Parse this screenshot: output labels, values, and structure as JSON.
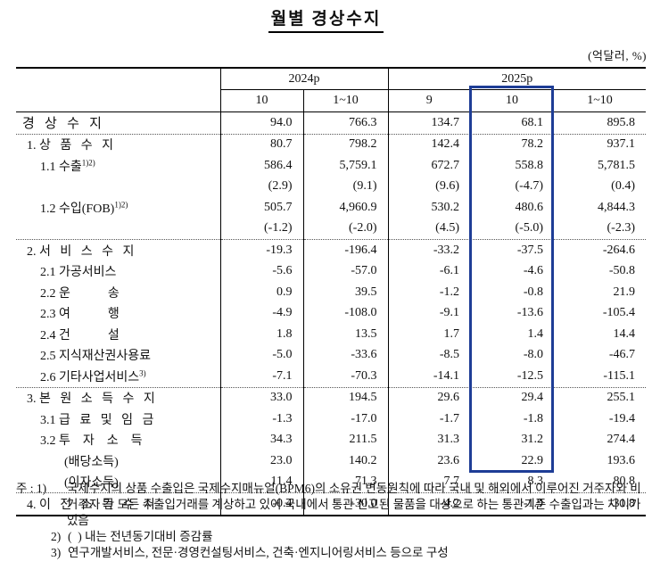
{
  "title": "월별 경상수지",
  "unit_label": "(억달러, %)",
  "colors": {
    "highlight_box": "#1e3d96",
    "grid": "#000000"
  },
  "table": {
    "col_groups": [
      {
        "label": "2024p",
        "span": 2
      },
      {
        "label": "2025p",
        "span": 3
      }
    ],
    "sub_headers": [
      "10",
      "1~10",
      "9",
      "10",
      "1~10"
    ],
    "highlight_col_index": 3,
    "rows": [
      {
        "label": "경   상   수   지",
        "sup": "",
        "indent": "l0",
        "bold": true,
        "section": false,
        "values": [
          "94.0",
          "766.3",
          "134.7",
          "68.1",
          "895.8"
        ]
      },
      {
        "label": "1. 상   품   수   지",
        "sup": "",
        "indent": "l1",
        "bold": false,
        "section": true,
        "values": [
          "80.7",
          "798.2",
          "142.4",
          "78.2",
          "937.1"
        ]
      },
      {
        "label": "1.1 수출",
        "sup": "1)2)",
        "indent": "l2",
        "bold": false,
        "section": false,
        "values": [
          "586.4",
          "5,759.1",
          "672.7",
          "558.8",
          "5,781.5"
        ]
      },
      {
        "label": "",
        "sup": "",
        "indent": "l2",
        "bold": false,
        "section": false,
        "values": [
          "(2.9)",
          "(9.1)",
          "(9.6)",
          "(-4.7)",
          "(0.4)"
        ]
      },
      {
        "label": "1.2 수입(FOB)",
        "sup": "1)2)",
        "indent": "l2",
        "bold": false,
        "section": false,
        "values": [
          "505.7",
          "4,960.9",
          "530.2",
          "480.6",
          "4,844.3"
        ]
      },
      {
        "label": "",
        "sup": "",
        "indent": "l2",
        "bold": false,
        "section": false,
        "values": [
          "(-1.2)",
          "(-2.0)",
          "(4.5)",
          "(-5.0)",
          "(-2.3)"
        ]
      },
      {
        "label": "2. 서   비   스   수   지",
        "sup": "",
        "indent": "l1",
        "bold": false,
        "section": true,
        "values": [
          "-19.3",
          "-196.4",
          "-33.2",
          "-37.5",
          "-264.6"
        ]
      },
      {
        "label": "2.1 가공서비스",
        "sup": "",
        "indent": "l2",
        "bold": false,
        "section": false,
        "values": [
          "-5.6",
          "-57.0",
          "-6.1",
          "-4.6",
          "-50.8"
        ]
      },
      {
        "label": "2.2 운            송",
        "sup": "",
        "indent": "l2",
        "bold": false,
        "section": false,
        "values": [
          "0.9",
          "39.5",
          "-1.2",
          "-0.8",
          "21.9"
        ]
      },
      {
        "label": "2.3 여            행",
        "sup": "",
        "indent": "l2",
        "bold": false,
        "section": false,
        "values": [
          "-4.9",
          "-108.0",
          "-9.1",
          "-13.6",
          "-105.4"
        ]
      },
      {
        "label": "2.4 건            설",
        "sup": "",
        "indent": "l2",
        "bold": false,
        "section": false,
        "values": [
          "1.8",
          "13.5",
          "1.7",
          "1.4",
          "14.4"
        ]
      },
      {
        "label": "2.5 지식재산권사용료",
        "sup": "",
        "indent": "l2",
        "bold": false,
        "section": false,
        "values": [
          "-5.0",
          "-33.6",
          "-8.5",
          "-8.0",
          "-46.7"
        ]
      },
      {
        "label": "2.6 기타사업서비스",
        "sup": "3)",
        "indent": "l2",
        "bold": false,
        "section": false,
        "values": [
          "-7.1",
          "-70.3",
          "-14.1",
          "-12.5",
          "-115.1"
        ]
      },
      {
        "label": "3. 본   원   소   득   수   지",
        "sup": "",
        "indent": "l1",
        "bold": false,
        "section": true,
        "values": [
          "33.0",
          "194.5",
          "29.6",
          "29.4",
          "255.1"
        ]
      },
      {
        "label": "3.1 급   료   및   임   금",
        "sup": "",
        "indent": "l2",
        "bold": false,
        "section": false,
        "values": [
          "-1.3",
          "-17.0",
          "-1.7",
          "-1.8",
          "-19.4"
        ]
      },
      {
        "label": "3.2 투    자    소    득",
        "sup": "",
        "indent": "l2",
        "bold": false,
        "section": false,
        "values": [
          "34.3",
          "211.5",
          "31.3",
          "31.2",
          "274.4"
        ]
      },
      {
        "label": "(배당소득)",
        "sup": "",
        "indent": "l3",
        "bold": false,
        "section": false,
        "values": [
          "23.0",
          "140.2",
          "23.6",
          "22.9",
          "193.6"
        ]
      },
      {
        "label": "(이자소득)",
        "sup": "",
        "indent": "l3",
        "bold": false,
        "section": false,
        "values": [
          "11.4",
          "71.3",
          "7.7",
          "8.3",
          "80.8"
        ]
      },
      {
        "label": "4. 이   전   소   득   수   지",
        "sup": "",
        "indent": "l1",
        "bold": false,
        "section": true,
        "values": [
          "-0.4",
          "-30.0",
          "-4.2",
          "-1.9",
          "-31.8"
        ]
      }
    ]
  },
  "footnotes": [
    {
      "prefix": "주 : 1)",
      "text": "국제수지의 상품 수출입은 국제수지매뉴얼(BPM6)의 소유권 변동원칙에 따라 국내 및 해외에서 이루어진 거주자와 비거주자 간 모든 수출입거래를 계상하고 있어 국내에서 통관 신고된 물품을 대상으로 하는 통관기준 수출입과는 차이가 있음"
    },
    {
      "prefix": "2)",
      "text": "(  ) 내는 전년동기대비 증감률"
    },
    {
      "prefix": "3)",
      "text": "연구개발서비스, 전문·경영컨설팅서비스, 건축·엔지니어링서비스 등으로 구성"
    }
  ]
}
